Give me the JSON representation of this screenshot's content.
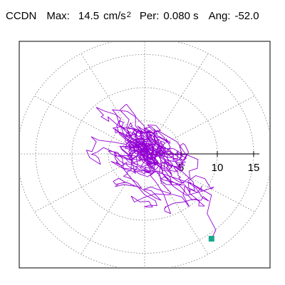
{
  "header": {
    "station": "CCDN",
    "max_label": "Max:",
    "max_value": "14.5",
    "max_unit": "cm/s",
    "max_unit_exp": "2",
    "per_label": "Per:",
    "per_value": "0.080 s",
    "ang_label": "Ang:",
    "ang_value": "-52.0"
  },
  "chart_data": {
    "type": "polar-particle-motion",
    "r_max": 17.5,
    "rings": [
      5,
      10,
      15
    ],
    "spokes_deg": [
      0,
      30,
      60,
      90,
      120,
      150,
      180,
      210,
      240,
      270,
      300,
      330
    ],
    "axis_ticks": [
      {
        "value": 5,
        "label": "5"
      },
      {
        "value": 10,
        "label": "10"
      },
      {
        "value": 15,
        "label": "15"
      }
    ],
    "trace_color": "#9400d3",
    "marker_color": "#1aa88a",
    "end_point": {
      "x": 9.2,
      "y": -12.8
    },
    "x_range": [
      -17.5,
      17.5
    ],
    "y_range": [
      -17.5,
      17.5
    ]
  }
}
